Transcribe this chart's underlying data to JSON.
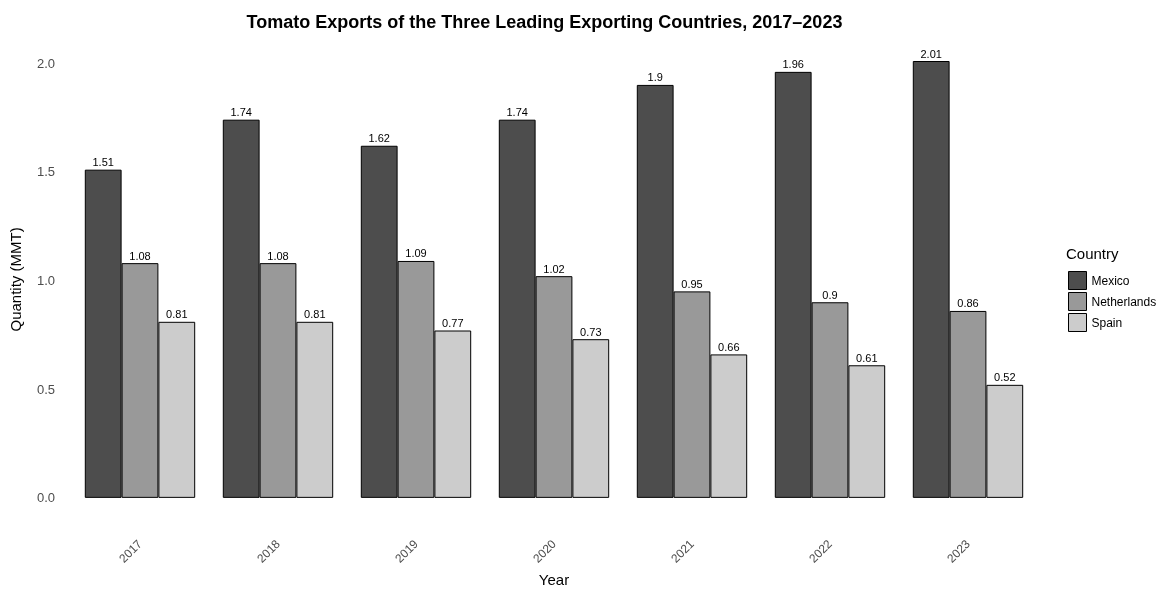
{
  "chart_data": {
    "type": "bar",
    "title": "Tomato Exports of the Three Leading Exporting Countries, 2017–2023",
    "xlabel": "Year",
    "ylabel": "Quantity (MMT)",
    "legend_title": "Country",
    "categories": [
      "2017",
      "2018",
      "2019",
      "2020",
      "2021",
      "2022",
      "2023"
    ],
    "series": [
      {
        "name": "Mexico",
        "color": "#4d4d4d",
        "values": [
          1.51,
          1.74,
          1.62,
          1.74,
          1.9,
          1.96,
          2.01
        ]
      },
      {
        "name": "Netherlands",
        "color": "#999999",
        "values": [
          1.08,
          1.08,
          1.09,
          1.02,
          0.95,
          0.9,
          0.86
        ]
      },
      {
        "name": "Spain",
        "color": "#cccccc",
        "values": [
          0.81,
          0.81,
          0.77,
          0.73,
          0.66,
          0.61,
          0.52
        ]
      }
    ],
    "ylim": [
      0,
      2.01
    ],
    "yticks": [
      {
        "value": 0,
        "label": "0.0"
      },
      0.5,
      {
        "value": 1,
        "label": "1.0"
      },
      1.5,
      {
        "value": 2,
        "label": "2.0"
      }
    ],
    "data_labels": true,
    "grid": false,
    "legend": "right"
  }
}
